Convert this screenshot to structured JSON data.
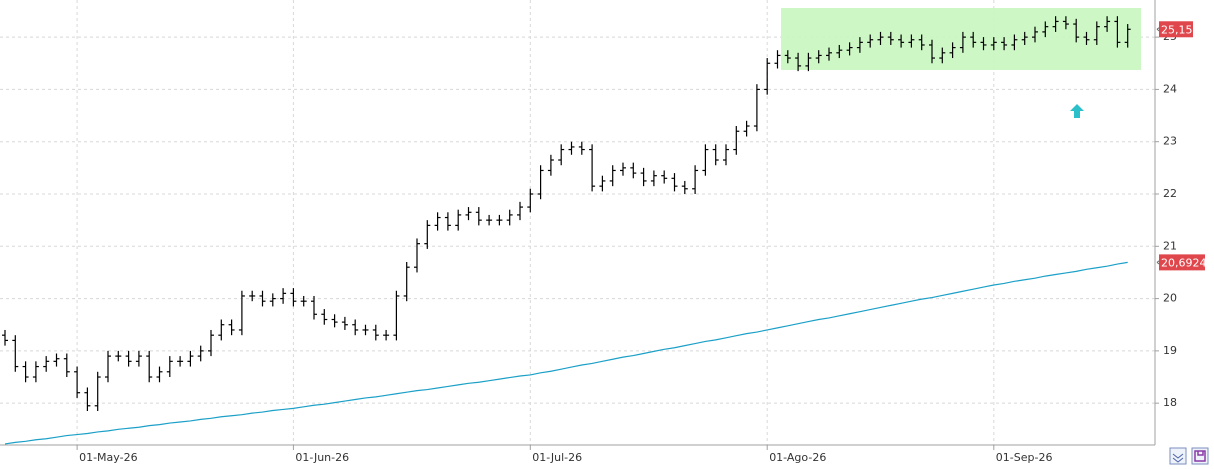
{
  "chart_data": {
    "type": "ohlc",
    "color": "#000000",
    "label_color": "#e0474c",
    "grid": true,
    "ylim": [
      17.2,
      25.71
    ],
    "yticks": [
      18,
      19,
      20,
      21,
      22,
      23,
      24,
      25
    ],
    "categories": [
      null,
      null,
      null,
      null,
      null,
      null,
      null,
      "01-May-26",
      null,
      null,
      null,
      null,
      null,
      null,
      null,
      null,
      null,
      null,
      null,
      null,
      null,
      null,
      null,
      null,
      null,
      null,
      null,
      null,
      "01-Jun-26",
      null,
      null,
      null,
      null,
      null,
      null,
      null,
      null,
      null,
      null,
      null,
      null,
      null,
      null,
      null,
      null,
      null,
      null,
      null,
      null,
      null,
      null,
      "01-Jul-26",
      null,
      null,
      null,
      null,
      null,
      null,
      null,
      null,
      null,
      null,
      null,
      null,
      null,
      null,
      null,
      null,
      null,
      null,
      null,
      null,
      null,
      null,
      "01-Ago-26",
      null,
      null,
      null,
      null,
      null,
      null,
      null,
      null,
      null,
      null,
      null,
      null,
      null,
      null,
      null,
      null,
      null,
      null,
      null,
      null,
      null,
      "01-Sep-26",
      null,
      null,
      null,
      null,
      null,
      null,
      null,
      null,
      null,
      null,
      null,
      null,
      null
    ],
    "open": [
      19.3,
      19.2,
      18.7,
      18.5,
      18.7,
      18.8,
      18.85,
      18.6,
      18.2,
      17.95,
      18.5,
      18.9,
      18.9,
      18.8,
      18.9,
      18.5,
      18.6,
      18.8,
      18.8,
      18.9,
      19.0,
      19.3,
      19.5,
      19.4,
      20.05,
      20.05,
      19.95,
      20.0,
      20.1,
      19.95,
      19.95,
      19.7,
      19.6,
      19.55,
      19.5,
      19.4,
      19.4,
      19.3,
      19.3,
      20.05,
      20.6,
      21.05,
      21.4,
      21.55,
      21.4,
      21.6,
      21.65,
      21.5,
      21.5,
      21.5,
      21.6,
      21.75,
      22.0,
      22.45,
      22.65,
      22.85,
      22.9,
      22.85,
      22.15,
      22.25,
      22.45,
      22.5,
      22.4,
      22.25,
      22.35,
      22.3,
      22.15,
      22.1,
      22.45,
      22.85,
      22.65,
      22.85,
      23.2,
      23.3,
      24.0,
      24.5,
      24.65,
      24.6,
      24.45,
      24.6,
      24.65,
      24.7,
      24.75,
      24.8,
      24.9,
      24.95,
      25.0,
      24.95,
      24.9,
      24.95,
      24.85,
      24.6,
      24.7,
      24.8,
      25.0,
      24.9,
      24.85,
      24.9,
      24.85,
      24.95,
      25.0,
      25.1,
      25.2,
      25.3,
      25.25,
      25.0,
      24.95,
      25.2,
      25.3,
      24.9
    ],
    "high": [
      19.4,
      19.3,
      18.8,
      18.8,
      18.9,
      18.95,
      18.95,
      18.7,
      18.3,
      18.6,
      19.0,
      19.0,
      19.0,
      19.0,
      19.0,
      18.7,
      18.9,
      18.9,
      19.0,
      19.1,
      19.4,
      19.6,
      19.6,
      20.15,
      20.15,
      20.15,
      20.1,
      20.2,
      20.2,
      20.05,
      20.05,
      19.8,
      19.7,
      19.65,
      19.6,
      19.5,
      19.5,
      19.4,
      20.15,
      20.7,
      21.15,
      21.5,
      21.65,
      21.65,
      21.7,
      21.75,
      21.75,
      21.6,
      21.6,
      21.7,
      21.85,
      22.1,
      22.55,
      22.75,
      22.95,
      23.0,
      23.0,
      22.95,
      22.35,
      22.55,
      22.6,
      22.6,
      22.5,
      22.45,
      22.45,
      22.4,
      22.25,
      22.55,
      22.95,
      22.95,
      22.95,
      23.3,
      23.4,
      24.1,
      24.6,
      24.75,
      24.75,
      24.7,
      24.7,
      24.75,
      24.8,
      24.85,
      24.9,
      25.0,
      25.05,
      25.1,
      25.1,
      25.05,
      25.05,
      25.05,
      24.95,
      24.8,
      24.9,
      25.1,
      25.1,
      25.0,
      25.0,
      25.0,
      25.05,
      25.1,
      25.2,
      25.3,
      25.4,
      25.4,
      25.35,
      25.1,
      25.3,
      25.4,
      25.4,
      25.25
    ],
    "low": [
      19.1,
      18.6,
      18.4,
      18.4,
      18.6,
      18.7,
      18.5,
      18.1,
      17.85,
      17.85,
      18.4,
      18.8,
      18.7,
      18.7,
      18.4,
      18.4,
      18.5,
      18.7,
      18.7,
      18.8,
      18.9,
      19.2,
      19.3,
      19.3,
      19.95,
      19.85,
      19.85,
      19.9,
      19.85,
      19.85,
      19.6,
      19.5,
      19.45,
      19.4,
      19.3,
      19.3,
      19.2,
      19.2,
      19.2,
      19.95,
      20.5,
      20.95,
      21.3,
      21.3,
      21.3,
      21.5,
      21.4,
      21.4,
      21.4,
      21.4,
      21.5,
      21.65,
      21.9,
      22.35,
      22.55,
      22.75,
      22.75,
      22.05,
      22.05,
      22.15,
      22.35,
      22.3,
      22.15,
      22.15,
      22.2,
      22.05,
      22.0,
      22.0,
      22.35,
      22.55,
      22.55,
      22.75,
      23.1,
      23.2,
      23.9,
      24.4,
      24.5,
      24.35,
      24.35,
      24.5,
      24.55,
      24.6,
      24.65,
      24.7,
      24.8,
      24.85,
      24.85,
      24.8,
      24.8,
      24.75,
      24.5,
      24.5,
      24.6,
      24.7,
      24.8,
      24.75,
      24.75,
      24.75,
      24.75,
      24.85,
      24.9,
      25.0,
      25.1,
      25.15,
      24.9,
      24.85,
      24.85,
      25.1,
      24.8,
      24.8
    ],
    "close": [
      19.2,
      18.7,
      18.5,
      18.7,
      18.8,
      18.85,
      18.6,
      18.2,
      17.95,
      18.5,
      18.9,
      18.9,
      18.8,
      18.9,
      18.5,
      18.6,
      18.8,
      18.8,
      18.9,
      19.0,
      19.3,
      19.5,
      19.4,
      20.05,
      20.05,
      19.95,
      20.0,
      20.1,
      19.95,
      19.95,
      19.7,
      19.6,
      19.55,
      19.5,
      19.4,
      19.4,
      19.3,
      19.3,
      20.05,
      20.6,
      21.05,
      21.4,
      21.55,
      21.4,
      21.6,
      21.65,
      21.5,
      21.5,
      21.5,
      21.6,
      21.75,
      22.0,
      22.45,
      22.65,
      22.85,
      22.9,
      22.85,
      22.15,
      22.25,
      22.45,
      22.5,
      22.4,
      22.25,
      22.35,
      22.3,
      22.15,
      22.1,
      22.45,
      22.85,
      22.65,
      22.85,
      23.2,
      23.3,
      24.0,
      24.5,
      24.65,
      24.6,
      24.45,
      24.6,
      24.65,
      24.7,
      24.75,
      24.8,
      24.9,
      24.95,
      25.0,
      24.95,
      24.9,
      24.95,
      24.85,
      24.6,
      24.7,
      24.8,
      25.0,
      24.9,
      24.85,
      24.9,
      24.85,
      24.95,
      25.0,
      25.1,
      25.2,
      25.3,
      25.25,
      25.0,
      24.95,
      25.2,
      25.3,
      24.9,
      25.15
    ],
    "close_label": "25,15",
    "overlay": {
      "type": "line",
      "color": "#1ba0c8",
      "values": [
        17.22,
        17.25,
        17.27,
        17.3,
        17.32,
        17.35,
        17.38,
        17.4,
        17.42,
        17.45,
        17.47,
        17.5,
        17.52,
        17.54,
        17.57,
        17.59,
        17.62,
        17.64,
        17.66,
        17.69,
        17.71,
        17.74,
        17.76,
        17.78,
        17.81,
        17.83,
        17.86,
        17.88,
        17.9,
        17.93,
        17.96,
        17.98,
        18.01,
        18.04,
        18.07,
        18.1,
        18.12,
        18.15,
        18.18,
        18.21,
        18.24,
        18.26,
        18.29,
        18.32,
        18.35,
        18.38,
        18.4,
        18.43,
        18.46,
        18.49,
        18.52,
        18.54,
        18.58,
        18.61,
        18.65,
        18.69,
        18.73,
        18.76,
        18.8,
        18.84,
        18.88,
        18.91,
        18.95,
        18.99,
        19.03,
        19.06,
        19.1,
        19.14,
        19.18,
        19.21,
        19.25,
        19.29,
        19.33,
        19.36,
        19.4,
        19.44,
        19.48,
        19.52,
        19.56,
        19.6,
        19.63,
        19.67,
        19.71,
        19.75,
        19.79,
        19.83,
        19.87,
        19.91,
        19.95,
        19.99,
        20.02,
        20.06,
        20.1,
        20.14,
        20.18,
        20.22,
        20.26,
        20.29,
        20.33,
        20.36,
        20.39,
        20.43,
        20.46,
        20.49,
        20.52,
        20.56,
        20.59,
        20.62,
        20.66,
        20.6924
      ],
      "label": "20,6924"
    }
  }
}
